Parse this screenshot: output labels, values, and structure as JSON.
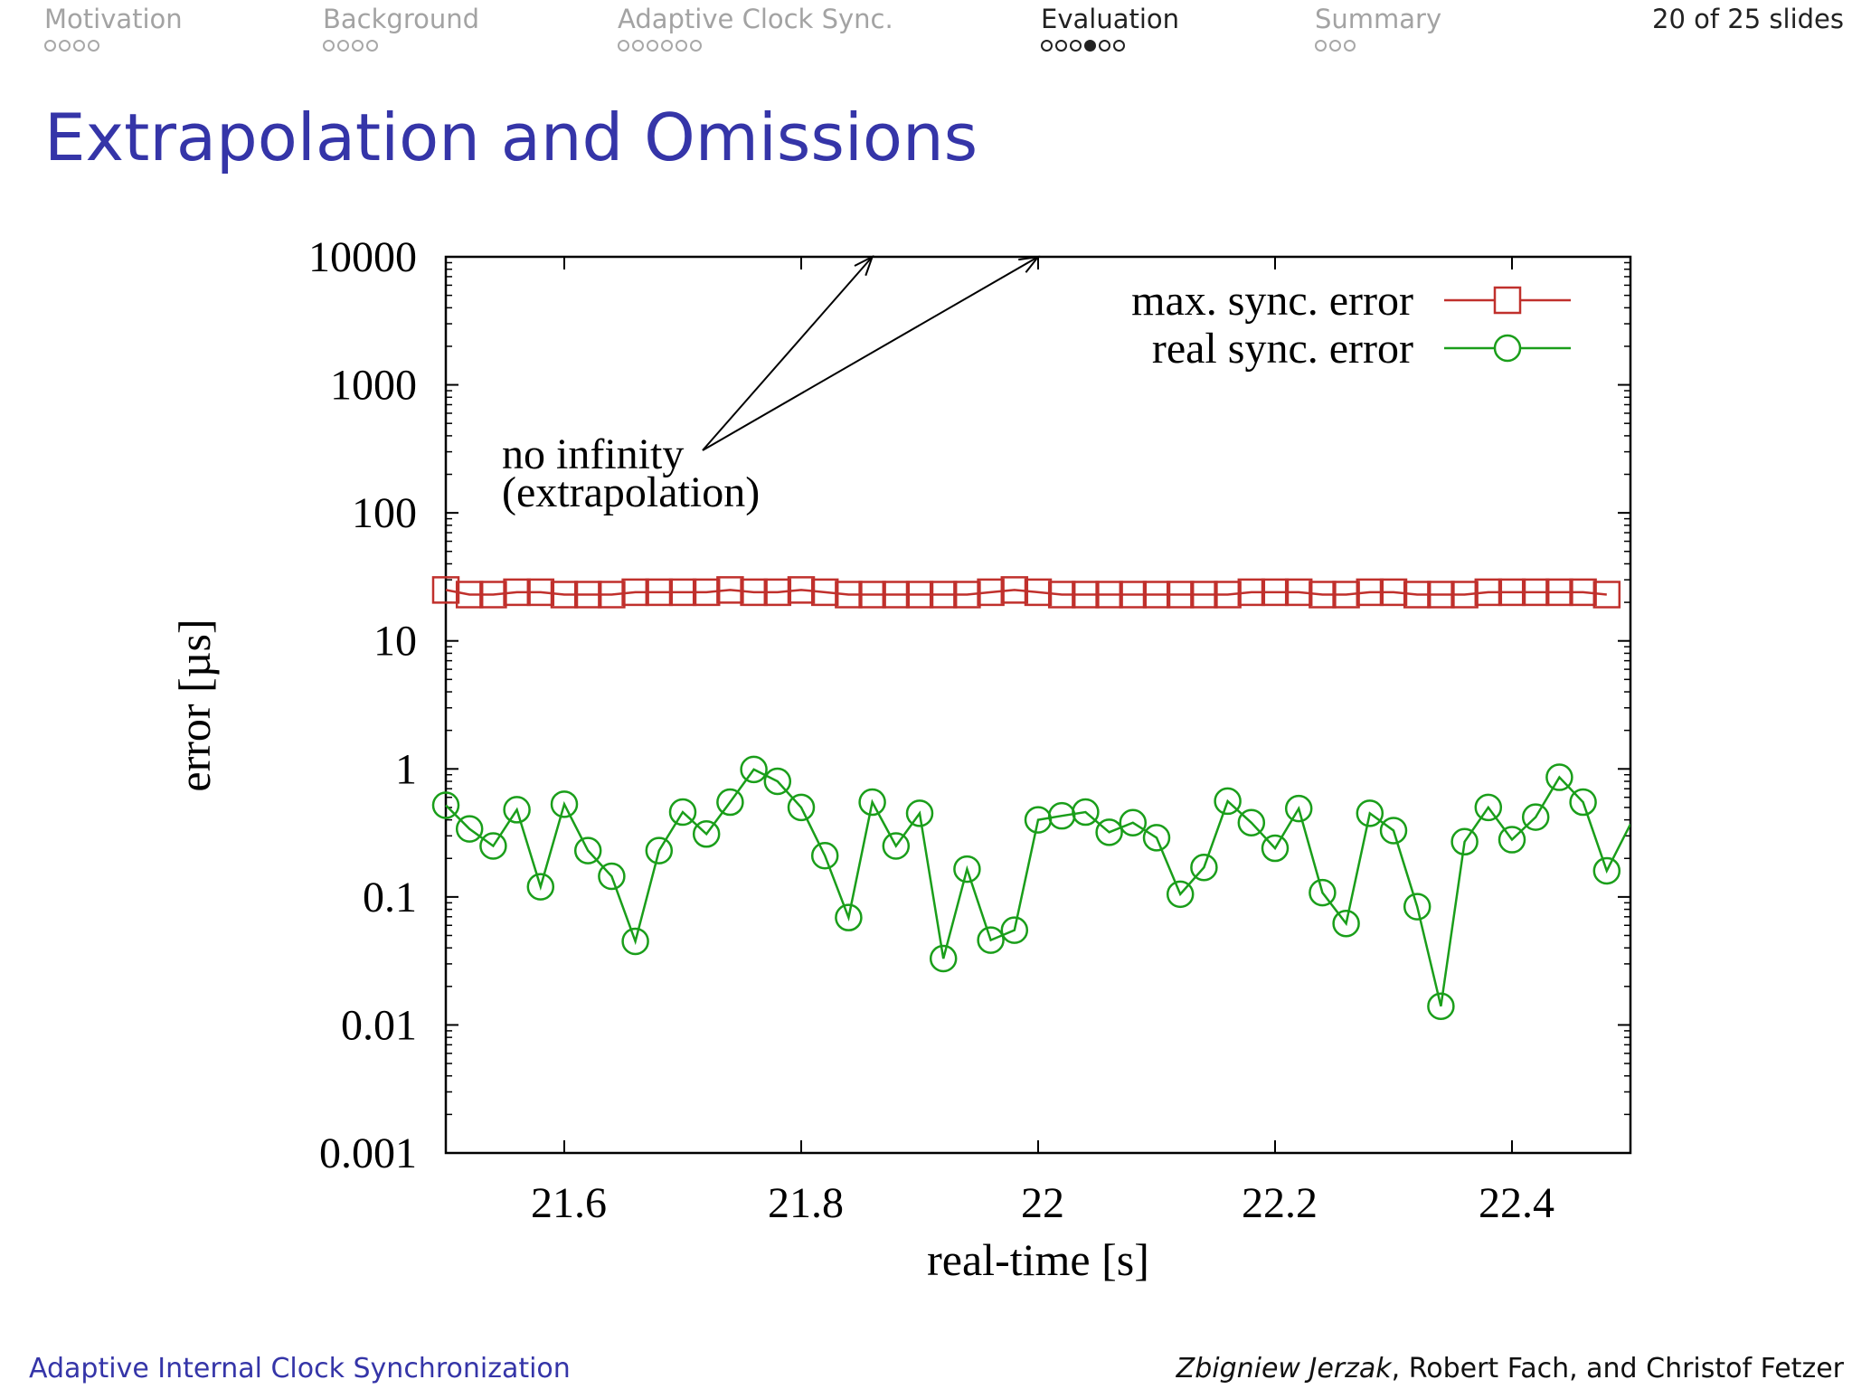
{
  "nav": {
    "sections": [
      {
        "label": "Motivation",
        "dots": 4,
        "current": -1
      },
      {
        "label": "Background",
        "dots": 4,
        "current": -1
      },
      {
        "label": "Adaptive Clock Sync.",
        "dots": 6,
        "current": -1
      },
      {
        "label": "Evaluation",
        "dots": 6,
        "current": 3
      },
      {
        "label": "Summary",
        "dots": 3,
        "current": -1
      }
    ],
    "active_section": 3,
    "slide_counter": "20 of 25 slides"
  },
  "slide": {
    "title": "Extrapolation and Omissions"
  },
  "footer": {
    "left": "Adaptive Internal Clock Synchronization",
    "author_first": "Zbigniew Jerzak",
    "authors_rest": ", Robert Fach, and Christof Fetzer"
  },
  "chart_data": {
    "type": "line",
    "xlabel": "real-time [s]",
    "ylabel": "error [µs]",
    "xlim": [
      21.5,
      22.5
    ],
    "ylim": [
      0.001,
      10000
    ],
    "yscale": "log",
    "xticks": [
      21.6,
      21.8,
      22,
      22.2,
      22.4
    ],
    "xtick_labels": [
      "21.6",
      "21.8",
      "22",
      "22.2",
      "22.4"
    ],
    "yticks": [
      0.001,
      0.01,
      0.1,
      1,
      10,
      100,
      1000,
      10000
    ],
    "ytick_labels": [
      "0.001",
      "0.01",
      "0.1",
      "1",
      "10",
      "100",
      "1000",
      "10000"
    ],
    "legend_position": "top-right",
    "grid": false,
    "x": [
      21.5,
      21.52,
      21.54,
      21.56,
      21.58,
      21.6,
      21.62,
      21.64,
      21.66,
      21.68,
      21.7,
      21.72,
      21.74,
      21.76,
      21.78,
      21.8,
      21.82,
      21.84,
      21.86,
      21.88,
      21.9,
      21.92,
      21.94,
      21.96,
      21.98,
      22.0,
      22.02,
      22.04,
      22.06,
      22.08,
      22.1,
      22.12,
      22.14,
      22.16,
      22.18,
      22.2,
      22.22,
      22.24,
      22.26,
      22.28,
      22.3,
      22.32,
      22.34,
      22.36,
      22.38,
      22.4,
      22.42,
      22.44,
      22.46,
      22.48
    ],
    "series": [
      {
        "name": "max. sync. error",
        "color": "#c0302c",
        "marker": "square",
        "values": [
          25,
          23,
          23,
          24,
          24,
          23,
          23,
          23,
          24,
          24,
          24,
          24,
          25,
          24,
          24,
          25,
          24,
          23,
          23,
          23,
          23,
          23,
          23,
          24,
          25,
          24,
          23,
          23,
          23,
          23,
          23,
          23,
          23,
          23,
          24,
          24,
          24,
          23,
          23,
          24,
          24,
          23,
          23,
          23,
          24,
          24,
          24,
          24,
          24,
          23
        ]
      },
      {
        "name": "real sync. error",
        "color": "#1a9e1a",
        "marker": "circle",
        "values": [
          0.52,
          0.34,
          0.25,
          0.48,
          0.12,
          0.53,
          0.23,
          0.145,
          0.045,
          0.23,
          0.46,
          0.31,
          0.55,
          0.99,
          0.8,
          0.5,
          0.21,
          0.069,
          0.55,
          0.25,
          0.45,
          0.033,
          0.165,
          0.046,
          0.055,
          0.4,
          0.43,
          0.46,
          0.32,
          0.38,
          0.29,
          0.105,
          0.17,
          0.56,
          0.38,
          0.24,
          0.49,
          0.108,
          0.062,
          0.45,
          0.33,
          0.084,
          0.014,
          0.27,
          0.5,
          0.28,
          0.42,
          0.86,
          0.55,
          0.16
        ],
        "x_end": 22.5,
        "value_end": 0.37
      }
    ],
    "annotations": [
      {
        "line1": "no infinity",
        "line2": "(extrapolation)",
        "arrow_targets_x": [
          21.86,
          22.0
        ],
        "arrow_target_y": 10000
      }
    ]
  }
}
